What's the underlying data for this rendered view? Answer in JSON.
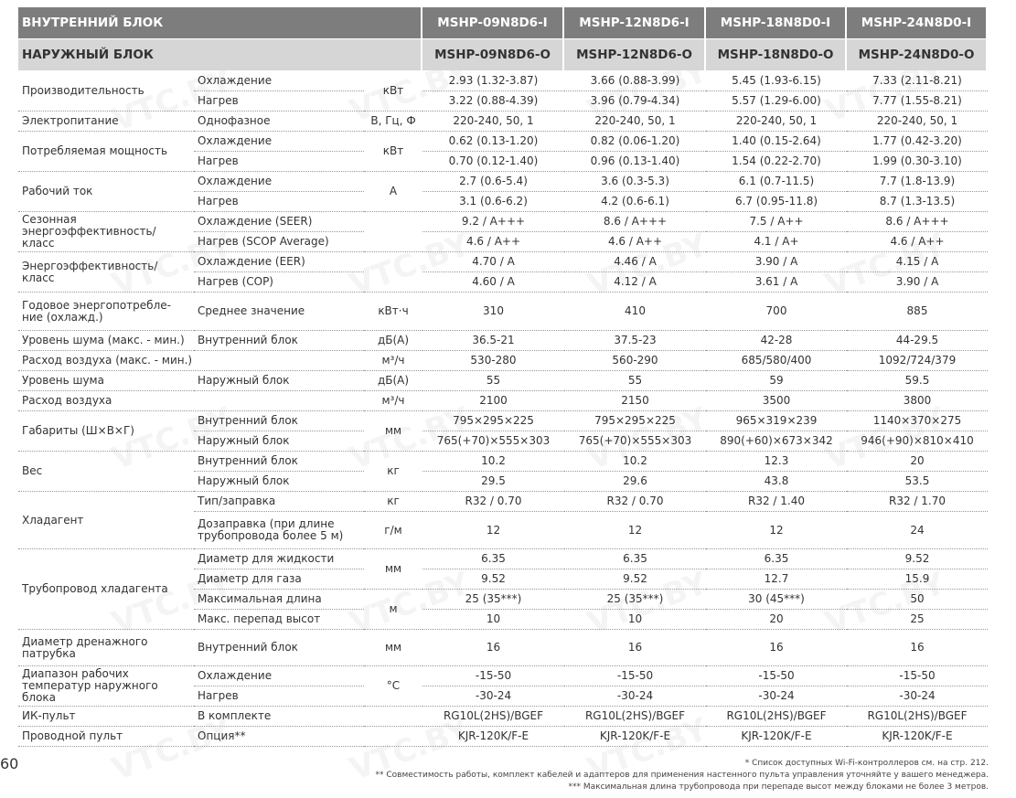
{
  "header": {
    "indoor_label": "ВНУТРЕННИЙ БЛОК",
    "outdoor_label": "НАРУЖНЫЙ БЛОК",
    "indoor_models": [
      "MSHP-09N8D6-I",
      "MSHP-12N8D6-I",
      "MSHP-18N8D0-I",
      "MSHP-24N8D0-I"
    ],
    "outdoor_models": [
      "MSHP-09N8D6-O",
      "MSHP-12N8D6-O",
      "MSHP-18N8D0-O",
      "MSHP-24N8D0-O"
    ]
  },
  "table": {
    "groups": [
      {
        "label": "Производительность",
        "units": [
          "кВт"
        ],
        "rows": [
          {
            "sub": "Охлаждение",
            "values": [
              "2.93 (1.32-3.87)",
              "3.66 (0.88-3.99)",
              "5.45 (1.93-6.15)",
              "7.33 (2.11-8.21)"
            ]
          },
          {
            "sub": "Нагрев",
            "values": [
              "3.22 (0.88-4.39)",
              "3.96 (0.79-4.34)",
              "5.57 (1.29-6.00)",
              "7.77 (1.55-8.21)"
            ]
          }
        ]
      },
      {
        "label": "Электропитание",
        "units": [
          "В, Гц, Ф"
        ],
        "rows": [
          {
            "sub": "Однофазное",
            "values": [
              "220-240, 50, 1",
              "220-240, 50, 1",
              "220-240, 50, 1",
              "220-240, 50, 1"
            ]
          }
        ]
      },
      {
        "label": "Потребляемая мощность",
        "units": [
          "кВт"
        ],
        "rows": [
          {
            "sub": "Охлаждение",
            "values": [
              "0.62 (0.13-1.20)",
              "0.82 (0.06-1.20)",
              "1.40 (0.15-2.64)",
              "1.77 (0.42-3.20)"
            ]
          },
          {
            "sub": "Нагрев",
            "values": [
              "0.70 (0.12-1.40)",
              "0.96 (0.13-1.40)",
              "1.54 (0.22-2.70)",
              "1.99 (0.30-3.10)"
            ]
          }
        ]
      },
      {
        "label": "Рабочий ток",
        "units": [
          "А"
        ],
        "rows": [
          {
            "sub": "Охлаждение",
            "values": [
              "2.7 (0.6-5.4)",
              "3.6 (0.3-5.3)",
              "6.1 (0.7-11.5)",
              "7.7 (1.8-13.9)"
            ]
          },
          {
            "sub": "Нагрев",
            "values": [
              "3.1 (0.6-6.2)",
              "4.2 (0.6-6.1)",
              "6.7 (0.95-11.8)",
              "8.7 (1.3-13.5)"
            ]
          }
        ]
      },
      {
        "label": "Сезонная энергоэффективность/ класс",
        "rows": [
          {
            "sub": "Охлаждение (SEER)",
            "values": [
              "9.2 / A+++",
              "8.6 / A+++",
              "7.5 / A++",
              "8.6 / A+++"
            ]
          },
          {
            "sub": "Нагрев (SCOP Average)",
            "values": [
              "4.6 / A++",
              "4.6 / A++",
              "4.1 / A+",
              "4.6 / A++"
            ]
          }
        ]
      },
      {
        "label": "Энергоэффективность/ класс",
        "rows": [
          {
            "sub": "Охлаждение (EER)",
            "values": [
              "4.70 / A",
              "4.46 / A",
              "3.90 / A",
              "4.15 / A"
            ]
          },
          {
            "sub": "Нагрев (COP)",
            "values": [
              "4.60 / A",
              "4.12 / A",
              "3.61 / A",
              "3.90 / A"
            ]
          }
        ]
      },
      {
        "label": "Годовое энергопотребле- ние (охлажд.)",
        "units": [
          "кВт·ч"
        ],
        "rows": [
          {
            "sub": "Среднее значение",
            "values": [
              "310",
              "410",
              "700",
              "885"
            ]
          }
        ]
      },
      {
        "label": "Уровень шума (макс. - мин.)",
        "units": [
          "дБ(А)"
        ],
        "rows": [
          {
            "sub": "Внутренний блок",
            "values": [
              "36.5-21",
              "37.5-23",
              "42-28",
              "44-29.5"
            ]
          }
        ]
      },
      {
        "label": "Расход воздуха (макс. - мин.)",
        "units": [
          "м³/ч"
        ],
        "rows": [
          {
            "values": [
              "530-280",
              "560-290",
              "685/580/400",
              "1092/724/379"
            ]
          }
        ]
      },
      {
        "label": "Уровень шума",
        "units": [
          "дБ(А)"
        ],
        "rows": [
          {
            "sub": "Наружный блок",
            "values": [
              "55",
              "55",
              "59",
              "59.5"
            ]
          }
        ]
      },
      {
        "label": "Расход воздуха",
        "units": [
          "м³/ч"
        ],
        "rows": [
          {
            "values": [
              "2100",
              "2150",
              "3500",
              "3800"
            ]
          }
        ]
      },
      {
        "label": "Габариты (Ш×В×Г)",
        "units": [
          "мм"
        ],
        "rows": [
          {
            "sub": "Внутренний блок",
            "values": [
              "795×295×225",
              "795×295×225",
              "965×319×239",
              "1140×370×275"
            ]
          },
          {
            "sub": "Наружный блок",
            "values": [
              "765(+70)×555×303",
              "765(+70)×555×303",
              "890(+60)×673×342",
              "946(+90)×810×410"
            ]
          }
        ]
      },
      {
        "label": "Вес",
        "units": [
          "кг"
        ],
        "rows": [
          {
            "sub": "Внутренний блок",
            "values": [
              "10.2",
              "10.2",
              "12.3",
              "20"
            ]
          },
          {
            "sub": "Наружный блок",
            "values": [
              "29.5",
              "29.6",
              "43.8",
              "53.5"
            ]
          }
        ]
      },
      {
        "label": "Хладагент",
        "units": [
          "кг",
          "г/м"
        ],
        "rows": [
          {
            "sub": "Тип/заправка",
            "values": [
              "R32 / 0.70",
              "R32 / 0.70",
              "R32 / 1.40",
              "R32 / 1.70"
            ]
          },
          {
            "sub": "Дозаправка (при длине трубопровода более 5 м)",
            "values": [
              "12",
              "12",
              "12",
              "24"
            ]
          }
        ]
      },
      {
        "label": "Трубопровод хладагента",
        "units": [
          "мм",
          "м"
        ],
        "rows": [
          {
            "sub": "Диаметр для жидкости",
            "values": [
              "6.35",
              "6.35",
              "6.35",
              "9.52"
            ]
          },
          {
            "sub": "Диаметр для газа",
            "values": [
              "9.52",
              "9.52",
              "12.7",
              "15.9"
            ]
          },
          {
            "sub": "Максимальная длина",
            "values": [
              "25 (35***)",
              "25 (35***)",
              "30 (45***)",
              "50"
            ]
          },
          {
            "sub": "Макс. перепад высот",
            "values": [
              "10",
              "10",
              "20",
              "25"
            ]
          }
        ]
      },
      {
        "label": "Диаметр дренажного патрубка",
        "units": [
          "мм"
        ],
        "rows": [
          {
            "sub": "Внутренний блок",
            "values": [
              "16",
              "16",
              "16",
              "16"
            ]
          }
        ]
      },
      {
        "label": "Диапазон рабочих температур наружного блока",
        "units": [
          "°C"
        ],
        "rows": [
          {
            "sub": "Охлаждение",
            "values": [
              "-15-50",
              "-15-50",
              "-15-50",
              "-15-50"
            ]
          },
          {
            "sub": "Нагрев",
            "values": [
              "-30-24",
              "-30-24",
              "-30-24",
              "-30-24"
            ]
          }
        ]
      },
      {
        "label": "ИК-пульт",
        "rows": [
          {
            "sub": "В комплекте",
            "values": [
              "RG10L(2HS)/BGEF",
              "RG10L(2HS)/BGEF",
              "RG10L(2HS)/BGEF",
              "RG10L(2HS)/BGEF"
            ]
          }
        ]
      },
      {
        "label": "Проводной пульт",
        "rows": [
          {
            "sub": "Опция**",
            "values": [
              "KJR-120K/F-E",
              "KJR-120K/F-E",
              "KJR-120K/F-E",
              "KJR-120K/F-E"
            ]
          }
        ]
      }
    ]
  },
  "watermark": "VTC.BY",
  "footnotes": [
    "* Список доступных Wi-Fi-контроллеров см. на стр. 212.",
    "** Совместимость работы, комплект кабелей и адаптеров для применения настенного пульта управления уточняйте у вашего менеджера.",
    "*** Максимальная длина трубопровода при перепаде высот между блоками не более 3 метров."
  ],
  "page_number": "60"
}
